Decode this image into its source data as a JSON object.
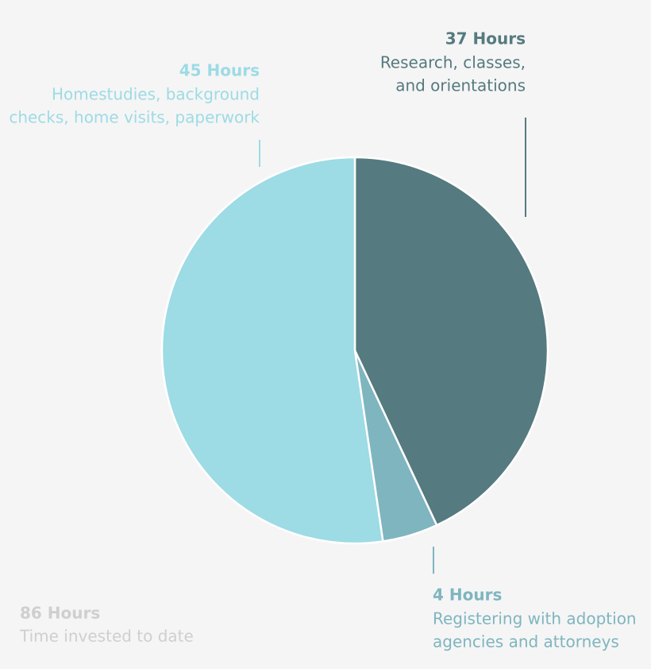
{
  "chart_data": {
    "type": "pie",
    "values": [
      37,
      4,
      45
    ],
    "value_labels": [
      "37 Hours",
      "4 Hours",
      "45 Hours"
    ],
    "descriptions": [
      [
        "Research, classes,",
        "and orientations"
      ],
      [
        "Registering with adoption",
        "agencies and attorneys"
      ],
      [
        "Homestudies, background",
        "checks, home visits, paperwork"
      ]
    ],
    "colors": [
      "#557a7f",
      "#7fb5bf",
      "#9ddbe5"
    ],
    "total_label": "86 Hours",
    "total_caption": "Time invested to date"
  }
}
